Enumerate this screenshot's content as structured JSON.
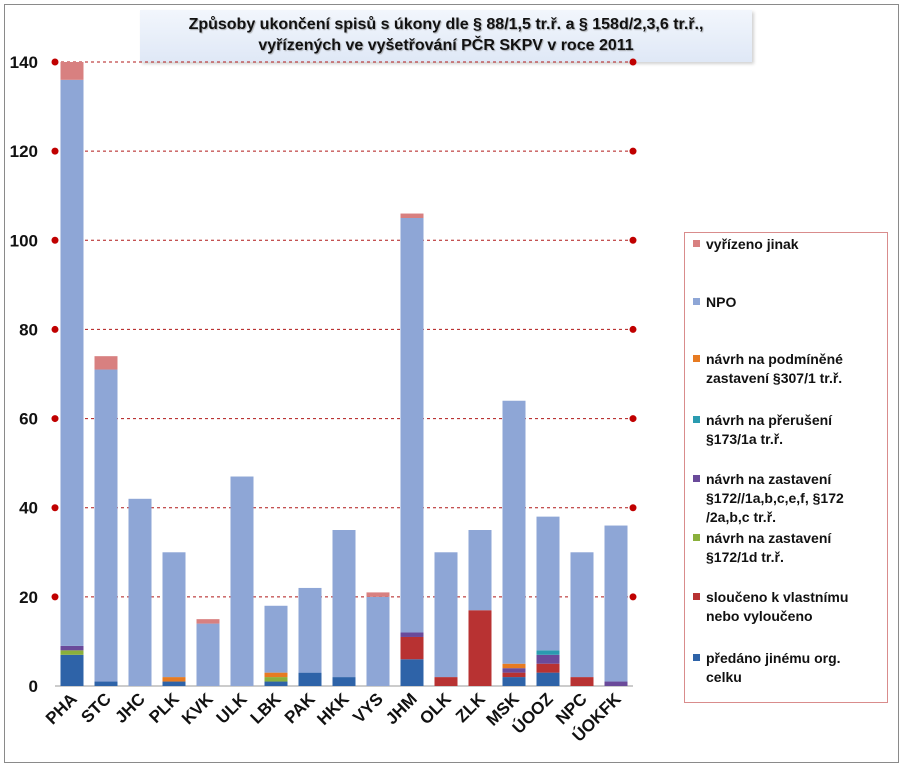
{
  "chart_data": {
    "type": "bar",
    "stacked": true,
    "title_lines": [
      "Způsoby ukončení spisů s úkony dle § 88/1,5 tr.ř. a § 158d/2,3,6 tr.ř.,",
      "vyřízených ve vyšetřování PČR SKPV v roce 2011"
    ],
    "categories": [
      "PHA",
      "STC",
      "JHC",
      "PLK",
      "KVK",
      "ULK",
      "LBK",
      "PAK",
      "HKK",
      "VYS",
      "JHM",
      "OLK",
      "ZLK",
      "MSK",
      "ÚOOZ",
      "NPC",
      "ÚOKFK"
    ],
    "ylim": [
      0,
      140
    ],
    "yticks": [
      0,
      20,
      40,
      60,
      80,
      100,
      120,
      140
    ],
    "ytick_labels": [
      "0",
      "20",
      "40",
      "60",
      "80",
      "100",
      "120",
      "140"
    ],
    "grid": true,
    "legend_position": "right",
    "series": [
      {
        "name": "předáno jinému org. celku",
        "color": "#2e63a8",
        "values": [
          7,
          1,
          0,
          1,
          0,
          0,
          1,
          3,
          2,
          0,
          6,
          0,
          0,
          2,
          3,
          0,
          0
        ]
      },
      {
        "name": "sloučeno k vlastnímu nebo vyloučeno",
        "color": "#b83232",
        "values": [
          0,
          0,
          0,
          0,
          0,
          0,
          0,
          0,
          0,
          0,
          5,
          2,
          17,
          1,
          2,
          2,
          0
        ]
      },
      {
        "name": "návrh na zastavení §172/1d tr.ř.",
        "color": "#8ab03c",
        "values": [
          1,
          0,
          0,
          0,
          0,
          0,
          1,
          0,
          0,
          0,
          0,
          0,
          0,
          0,
          0,
          0,
          0
        ]
      },
      {
        "name": "návrh na zastavení §172//1a,b,c,e,f, §172 /2a,b,c tr.ř.",
        "color": "#6a4a9a",
        "values": [
          1,
          0,
          0,
          0,
          0,
          0,
          0,
          0,
          0,
          0,
          1,
          0,
          0,
          1,
          2,
          0,
          1
        ]
      },
      {
        "name": "návrh na přerušení §173/1a tr.ř.",
        "color": "#2a9bb0",
        "values": [
          0,
          0,
          0,
          0,
          0,
          0,
          0,
          0,
          0,
          0,
          0,
          0,
          0,
          0,
          1,
          0,
          0
        ]
      },
      {
        "name": "návrh na podmíněné zastavení §307/1 tr.ř.",
        "color": "#e77b22",
        "values": [
          0,
          0,
          0,
          1,
          0,
          0,
          1,
          0,
          0,
          0,
          0,
          0,
          0,
          1,
          0,
          0,
          0
        ]
      },
      {
        "name": "NPO",
        "color": "#8ea6d6",
        "values": [
          127,
          70,
          42,
          28,
          14,
          47,
          15,
          19,
          33,
          20,
          93,
          28,
          18,
          59,
          30,
          28,
          35
        ]
      },
      {
        "name": "vyřízeno jinak",
        "color": "#d88080",
        "values": [
          4,
          3,
          0,
          0,
          1,
          0,
          0,
          0,
          0,
          1,
          1,
          0,
          0,
          0,
          0,
          0,
          0
        ]
      }
    ],
    "legend_order": [
      "vyřízeno jinak",
      "NPO",
      "návrh na podmíněné zastavení §307/1 tr.ř.",
      "návrh na přerušení §173/1a tr.ř.",
      "návrh na zastavení §172//1a,b,c,e,f, §172 /2a,b,c tr.ř.",
      "návrh na zastavení §172/1d tr.ř.",
      "sloučeno k vlastnímu nebo vyloučeno",
      "předáno jinému org. celku"
    ],
    "legend_labels": [
      [
        "vyřízeno jinak"
      ],
      [
        "NPO"
      ],
      [
        "návrh na podmíněné",
        "zastavení §307/1 tr.ř."
      ],
      [
        "návrh na přerušení",
        "§173/1a tr.ř."
      ],
      [
        "návrh na zastavení",
        "§172//1a,b,c,e,f, §172",
        "/2a,b,c tr.ř."
      ],
      [
        "návrh na zastavení",
        "§172/1d tr.ř."
      ],
      [
        "sloučeno k vlastnímu",
        "nebo vyloučeno"
      ],
      [
        "předáno jinému org.",
        "celku"
      ]
    ],
    "legend_colors": [
      "#d88080",
      "#8ea6d6",
      "#e77b22",
      "#2a9bb0",
      "#6a4a9a",
      "#8ab03c",
      "#b83232",
      "#2e63a8"
    ],
    "gridline_color": "#b01818"
  }
}
